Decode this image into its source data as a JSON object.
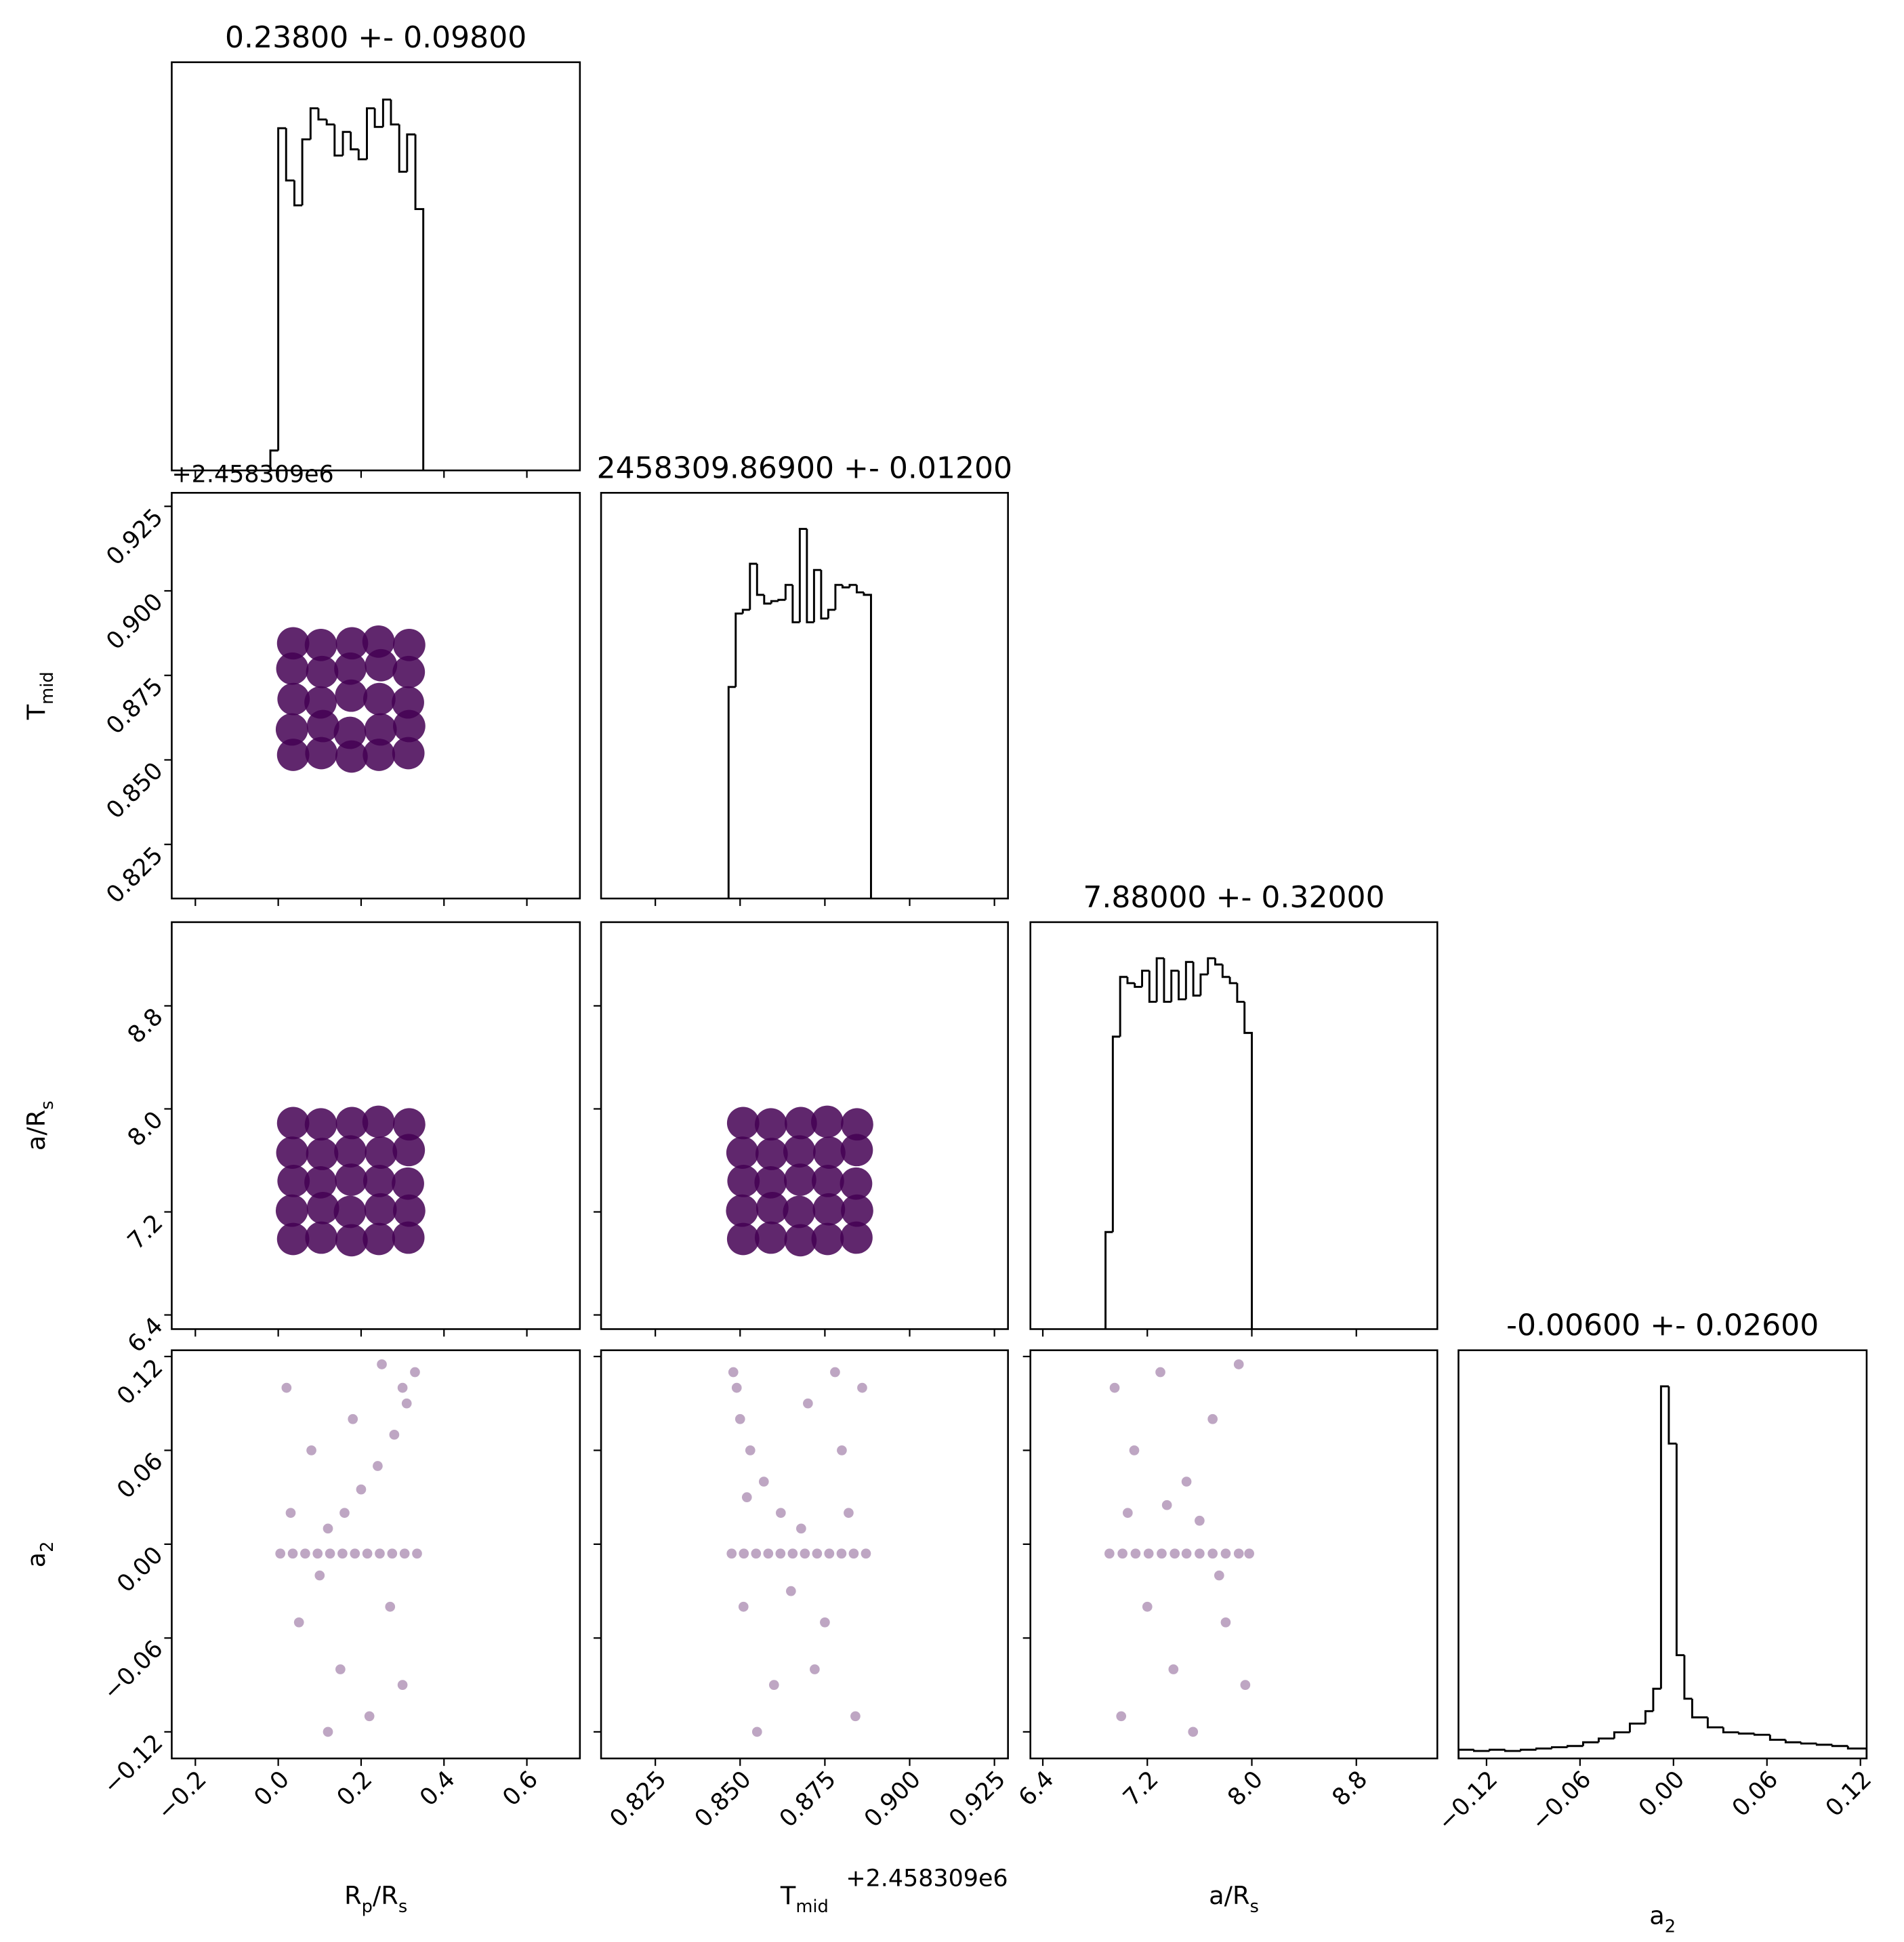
{
  "chart_data": [
    {
      "type": "histogram",
      "title": "0.23800 +- 0.09800",
      "color": "#000000",
      "bins": [
        -0.019,
        0,
        0.019,
        0.039,
        0.058,
        0.078,
        0.097,
        0.117,
        0.136,
        0.156,
        0.175,
        0.194,
        0.214,
        0.233,
        0.253,
        0.272,
        0.292,
        0.311,
        0.331,
        0.35
      ],
      "counts": [
        16,
        275,
        233,
        213,
        266,
        291,
        282,
        278,
        253,
        272,
        258,
        250,
        291,
        276,
        298,
        278,
        240,
        270,
        210
      ],
      "xlim": [
        -0.257,
        0.728
      ],
      "ylim": [
        0,
        328
      ],
      "xticks": [
        {
          "value": -0.2,
          "label": "−0.2"
        },
        {
          "value": 0,
          "label": "0.0"
        },
        0.2,
        0.4,
        0.6
      ]
    },
    {
      "type": "scatter",
      "color": "#440154",
      "yoffset": "+2.458309e6",
      "ylabel": [
        {
          "text": "T"
        },
        {
          "text": "mid",
          "sub": true
        }
      ],
      "x": [
        0.036,
        0.104,
        0.177,
        0.243,
        0.314,
        0.033,
        0.108,
        0.173,
        0.247,
        0.316,
        0.037,
        0.102,
        0.176,
        0.244,
        0.313,
        0.034,
        0.106,
        0.174,
        0.248,
        0.315,
        0.036,
        0.103,
        0.178,
        0.242,
        0.316
      ],
      "y": [
        0.8515,
        0.852,
        0.851,
        0.8515,
        0.852,
        0.859,
        0.86,
        0.858,
        0.859,
        0.86,
        0.868,
        0.867,
        0.869,
        0.868,
        0.867,
        0.877,
        0.876,
        0.877,
        0.878,
        0.876,
        0.8845,
        0.884,
        0.8845,
        0.885,
        0.884
      ],
      "xlim": [
        -0.257,
        0.728
      ],
      "ylim": [
        0.809,
        0.929
      ],
      "xticks": [
        {
          "value": -0.2,
          "label": "−0.2"
        },
        {
          "value": 0,
          "label": "0.0"
        },
        0.2,
        0.4,
        0.6
      ],
      "yticks": [
        0.825,
        {
          "value": 0.85,
          "label": "0.850"
        },
        0.875,
        {
          "value": 0.9,
          "label": "0.900"
        },
        0.925
      ]
    },
    {
      "type": "histogram",
      "title": "2458309.86900 +- 0.01200",
      "color": "#000000",
      "bins": [
        0.8466,
        0.8487,
        0.8508,
        0.8529,
        0.855,
        0.8571,
        0.8592,
        0.8613,
        0.8634,
        0.8655,
        0.8676,
        0.8697,
        0.8718,
        0.8739,
        0.876,
        0.8781,
        0.8802,
        0.8823,
        0.8844,
        0.8865,
        0.8886
      ],
      "counts": [
        170,
        229,
        232,
        269,
        244,
        237,
        239,
        240,
        252,
        222,
        297,
        222,
        264,
        225,
        232,
        252,
        250,
        252,
        246,
        244
      ],
      "xlim": [
        0.809,
        0.929
      ],
      "ylim": [
        0,
        326
      ],
      "xticks": [
        0.825,
        {
          "value": 0.85,
          "label": "0.850"
        },
        0.875,
        {
          "value": 0.9,
          "label": "0.900"
        },
        0.925
      ]
    },
    {
      "type": "scatter",
      "color": "#440154",
      "ylabel": [
        {
          "text": "a/R"
        },
        {
          "text": "s",
          "sub": true
        }
      ],
      "x": [
        0.036,
        0.104,
        0.177,
        0.243,
        0.314,
        0.033,
        0.108,
        0.173,
        0.247,
        0.316,
        0.037,
        0.102,
        0.176,
        0.244,
        0.313,
        0.034,
        0.106,
        0.174,
        0.248,
        0.315,
        0.036,
        0.103,
        0.178,
        0.242,
        0.316
      ],
      "y": [
        6.99,
        7.0,
        6.98,
        6.99,
        7.0,
        7.21,
        7.23,
        7.2,
        7.22,
        7.21,
        7.44,
        7.43,
        7.45,
        7.44,
        7.42,
        7.66,
        7.65,
        7.67,
        7.66,
        7.68,
        7.89,
        7.88,
        7.89,
        7.9,
        7.88
      ],
      "xlim": [
        -0.257,
        0.728
      ],
      "ylim": [
        6.29,
        9.45
      ],
      "xticks": [
        {
          "value": -0.2,
          "label": "−0.2"
        },
        {
          "value": 0,
          "label": "0.0"
        },
        0.2,
        0.4,
        0.6
      ],
      "yticks": [
        6.4,
        7.2,
        {
          "value": 8,
          "label": "8.0"
        },
        8.8
      ]
    },
    {
      "type": "scatter",
      "color": "#440154",
      "x": [
        0.8509,
        0.8591,
        0.8678,
        0.8758,
        0.8843,
        0.8506,
        0.8595,
        0.8674,
        0.8762,
        0.8845,
        0.851,
        0.859,
        0.8677,
        0.8759,
        0.8842,
        0.8507,
        0.8593,
        0.8675,
        0.8763,
        0.8844,
        0.8509,
        0.8591,
        0.8679,
        0.8757,
        0.8845
      ],
      "y": [
        6.99,
        7.0,
        6.98,
        6.99,
        7.0,
        7.21,
        7.23,
        7.2,
        7.22,
        7.21,
        7.44,
        7.43,
        7.45,
        7.44,
        7.42,
        7.66,
        7.65,
        7.67,
        7.66,
        7.68,
        7.89,
        7.88,
        7.89,
        7.9,
        7.88
      ],
      "xlim": [
        0.809,
        0.929
      ],
      "ylim": [
        6.29,
        9.45
      ],
      "xticks": [
        0.825,
        {
          "value": 0.85,
          "label": "0.850"
        },
        0.875,
        {
          "value": 0.9,
          "label": "0.900"
        },
        0.925
      ],
      "yticks": [
        6.4,
        7.2,
        {
          "value": 8,
          "label": "8.0"
        },
        8.8
      ]
    },
    {
      "type": "histogram",
      "title": "7.88000 +- 0.32000",
      "color": "#000000",
      "bins": [
        6.88,
        6.936,
        6.992,
        7.048,
        7.104,
        7.16,
        7.216,
        7.272,
        7.328,
        7.384,
        7.44,
        7.496,
        7.552,
        7.608,
        7.664,
        7.72,
        7.776,
        7.832,
        7.888,
        7.944,
        8.0
      ],
      "counts": [
        78,
        235,
        283,
        278,
        275,
        288,
        263,
        298,
        263,
        288,
        265,
        295,
        268,
        285,
        298,
        293,
        283,
        278,
        263,
        238
      ],
      "xlim": [
        6.305,
        9.42
      ],
      "ylim": [
        0,
        327
      ],
      "xticks": [
        6.4,
        7.2,
        {
          "value": 8,
          "label": "8.0"
        },
        8.8
      ]
    },
    {
      "type": "scatter",
      "color": "#440154",
      "xlabel": [
        {
          "text": "R"
        },
        {
          "text": "p",
          "sub": true
        },
        {
          "text": "/R"
        },
        {
          "text": "s",
          "sub": true
        }
      ],
      "ylabel": [
        {
          "text": "a"
        },
        {
          "text": "2",
          "sub": true
        }
      ],
      "x": [
        0.005,
        0.035,
        0.065,
        0.095,
        0.125,
        0.155,
        0.185,
        0.215,
        0.245,
        0.275,
        0.305,
        0.335,
        0.12,
        0.16,
        0.2,
        0.24,
        0.28,
        0.31,
        0.33,
        0.3,
        0.02,
        0.08,
        0.05,
        0.15,
        0.22,
        0.27,
        0.1,
        0.18,
        0.3,
        0.03,
        0.25,
        0.12
      ],
      "y": [
        -0.006,
        -0.006,
        -0.006,
        -0.006,
        -0.006,
        -0.006,
        -0.006,
        -0.006,
        -0.006,
        -0.006,
        -0.006,
        -0.006,
        0.01,
        0.02,
        0.035,
        0.05,
        0.07,
        0.09,
        0.11,
        0.1,
        0.1,
        0.06,
        -0.05,
        -0.08,
        -0.11,
        -0.04,
        -0.02,
        0.08,
        -0.09,
        0.02,
        0.115,
        -0.12
      ],
      "xlim": [
        -0.257,
        0.728
      ],
      "ylim": [
        -0.137,
        0.124
      ],
      "xticks": [
        {
          "value": -0.2,
          "label": "−0.2"
        },
        {
          "value": 0,
          "label": "0.0"
        },
        0.2,
        0.4,
        0.6
      ],
      "yticks": [
        {
          "value": -0.12,
          "label": "−0.12"
        },
        {
          "value": -0.06,
          "label": "−0.06"
        },
        {
          "value": 0,
          "label": "0.00"
        },
        0.06,
        0.12
      ]
    },
    {
      "type": "scatter",
      "color": "#440154",
      "xoffset": "+2.458309e6",
      "xlabel": [
        {
          "text": "T"
        },
        {
          "text": "mid",
          "sub": true
        }
      ],
      "x": [
        0.8475,
        0.8511,
        0.8547,
        0.8583,
        0.8619,
        0.8655,
        0.8691,
        0.8727,
        0.8763,
        0.8799,
        0.8835,
        0.8871,
        0.848,
        0.85,
        0.853,
        0.857,
        0.862,
        0.868,
        0.849,
        0.852,
        0.87,
        0.88,
        0.875,
        0.86,
        0.884,
        0.865,
        0.878,
        0.855,
        0.882,
        0.872,
        0.886,
        0.851
      ],
      "y": [
        -0.006,
        -0.006,
        -0.006,
        -0.006,
        -0.006,
        -0.006,
        -0.006,
        -0.006,
        -0.006,
        -0.006,
        -0.006,
        -0.006,
        0.11,
        0.08,
        0.06,
        0.04,
        0.02,
        0.01,
        0.1,
        0.03,
        0.09,
        0.06,
        -0.05,
        -0.09,
        -0.11,
        -0.03,
        0.11,
        -0.12,
        0.02,
        -0.08,
        0.1,
        -0.04
      ],
      "xlim": [
        0.809,
        0.929
      ],
      "ylim": [
        -0.137,
        0.124
      ],
      "xticks": [
        0.825,
        {
          "value": 0.85,
          "label": "0.850"
        },
        0.875,
        {
          "value": 0.9,
          "label": "0.900"
        },
        0.925
      ],
      "yticks": [
        {
          "value": -0.12,
          "label": "−0.12"
        },
        {
          "value": -0.06,
          "label": "−0.06"
        },
        {
          "value": 0,
          "label": "0.00"
        },
        0.06,
        0.12
      ]
    },
    {
      "type": "scatter",
      "color": "#440154",
      "xlabel": [
        {
          "text": "a/R"
        },
        {
          "text": "s",
          "sub": true
        }
      ],
      "x": [
        6.91,
        7.01,
        7.11,
        7.21,
        7.31,
        7.41,
        7.5,
        7.6,
        7.7,
        7.8,
        7.9,
        7.98,
        6.95,
        7.1,
        7.3,
        7.5,
        7.7,
        7.9,
        7.05,
        7.6,
        7.2,
        7.4,
        7.8,
        7.0,
        7.55,
        7.95,
        7.35,
        7.75
      ],
      "y": [
        -0.006,
        -0.006,
        -0.006,
        -0.006,
        -0.006,
        -0.006,
        -0.006,
        -0.006,
        -0.006,
        -0.006,
        -0.006,
        -0.006,
        0.1,
        0.06,
        0.11,
        0.04,
        0.08,
        0.115,
        0.02,
        0.015,
        -0.04,
        -0.08,
        -0.05,
        -0.11,
        -0.12,
        -0.09,
        0.025,
        -0.02
      ],
      "xlim": [
        6.305,
        9.42
      ],
      "ylim": [
        -0.137,
        0.124
      ],
      "xticks": [
        6.4,
        7.2,
        {
          "value": 8,
          "label": "8.0"
        },
        8.8
      ],
      "yticks": [
        {
          "value": -0.12,
          "label": "−0.12"
        },
        {
          "value": -0.06,
          "label": "−0.06"
        },
        {
          "value": 0,
          "label": "0.00"
        },
        0.06,
        0.12
      ]
    },
    {
      "type": "histogram",
      "title": "-0.00600 +- 0.02600",
      "color": "#000000",
      "xlabel": [
        {
          "text": "a"
        },
        {
          "text": "2",
          "sub": true
        }
      ],
      "bins": [
        -0.138,
        -0.128,
        -0.118,
        -0.108,
        -0.098,
        -0.088,
        -0.078,
        -0.068,
        -0.058,
        -0.048,
        -0.038,
        -0.028,
        -0.018,
        -0.013,
        -0.008,
        -0.003,
        0.002,
        0.007,
        0.012,
        0.022,
        0.032,
        0.042,
        0.052,
        0.062,
        0.072,
        0.082,
        0.092,
        0.102,
        0.112,
        0.124
      ],
      "counts": [
        7,
        6,
        7,
        6,
        7,
        8,
        9,
        10,
        13,
        16,
        21,
        28,
        38,
        56,
        299,
        253,
        83,
        48,
        33,
        25,
        21,
        20,
        19,
        15,
        13,
        12,
        11,
        10,
        8
      ],
      "xlim": [
        -0.138,
        0.124
      ],
      "ylim": [
        0,
        328
      ],
      "xticks": [
        {
          "value": -0.12,
          "label": "−0.12"
        },
        {
          "value": -0.06,
          "label": "−0.06"
        },
        {
          "value": 0,
          "label": "0.00"
        },
        0.06,
        0.12
      ]
    }
  ]
}
